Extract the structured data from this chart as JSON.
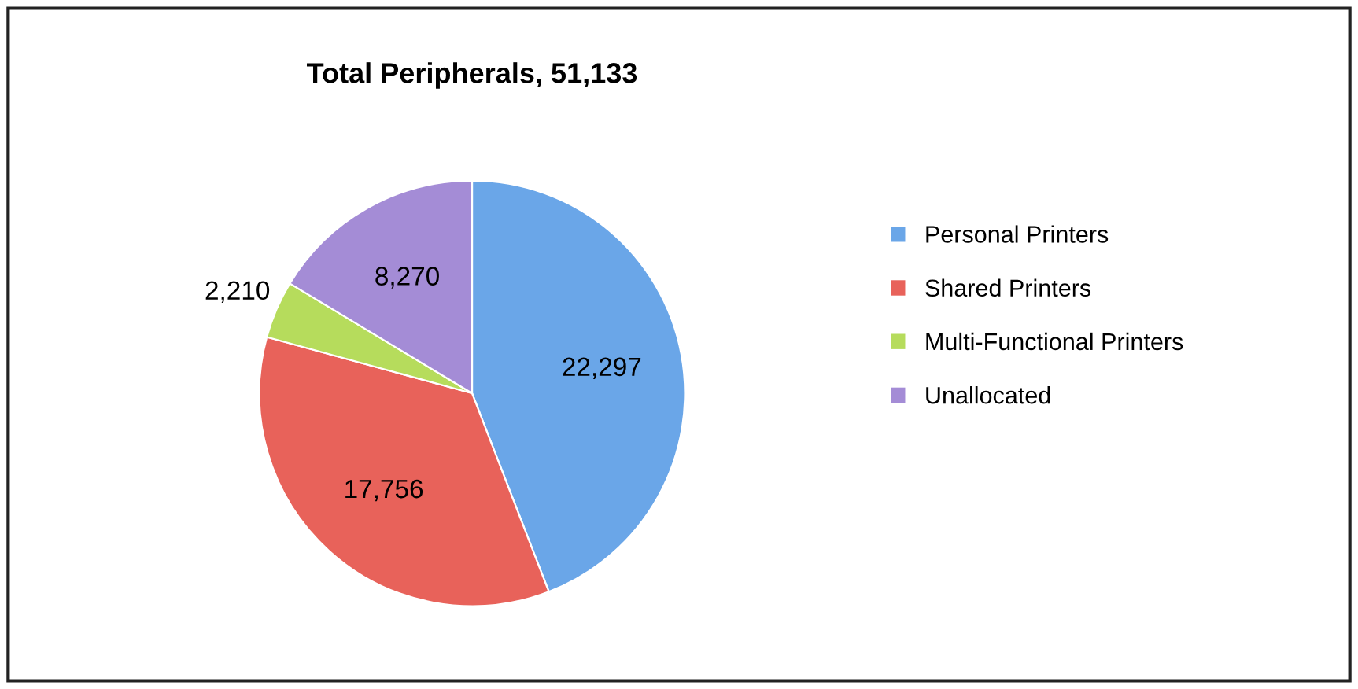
{
  "chart_data": {
    "type": "pie",
    "title": "Total Peripherals, 51,133",
    "categories": [
      "Personal Printers",
      "Shared Printers",
      "Multi-Functional Printers",
      "Unallocated"
    ],
    "values": [
      22297,
      17756,
      2210,
      8270
    ],
    "value_labels": [
      "22,297",
      "17,756",
      "2,210",
      "8,270"
    ],
    "colors": [
      "#6aa6e8",
      "#e8625a",
      "#b6dc5c",
      "#a48cd6"
    ],
    "legend": "right"
  }
}
